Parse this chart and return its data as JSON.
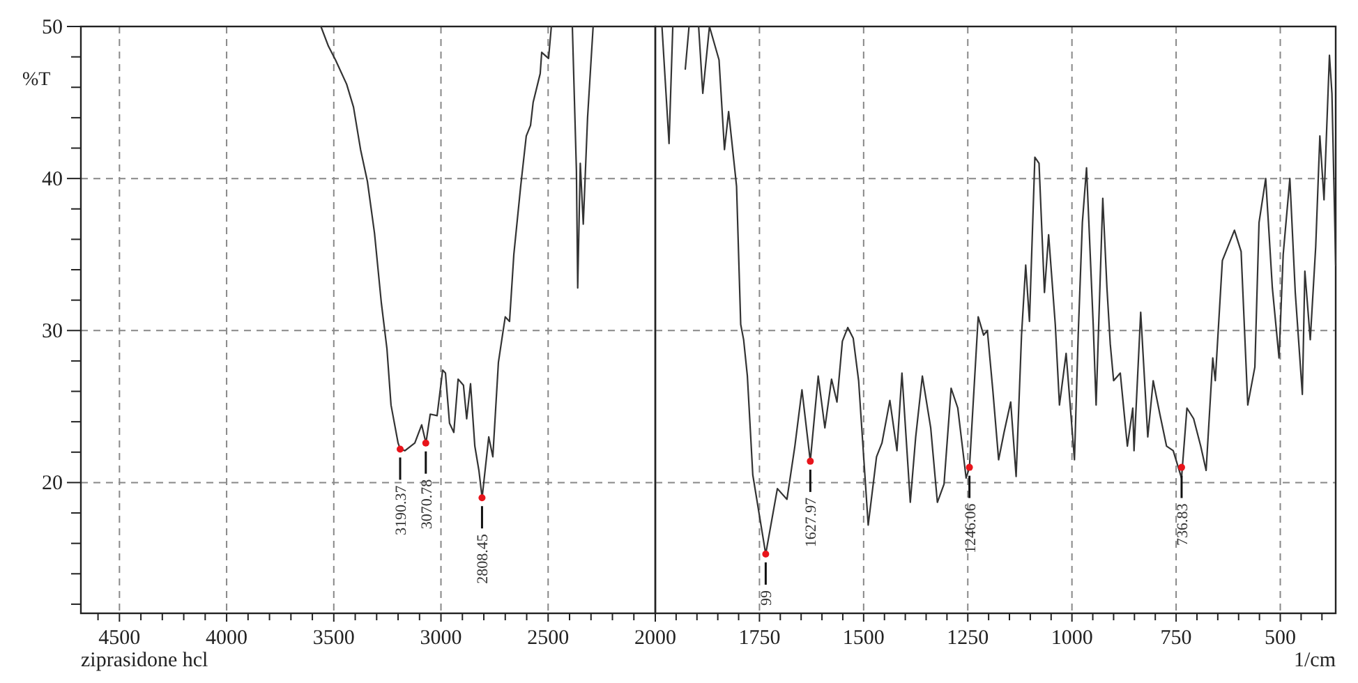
{
  "chart_data": [
    {
      "type": "line",
      "ylabel": "%T",
      "annotations": [
        "ziprasidone hcl",
        {
          "text": "3190.37",
          "x": 3190.37,
          "y": 22.2
        },
        {
          "text": "3070.78",
          "x": 3070.78,
          "y": 22.6
        },
        {
          "text": "2808.45",
          "x": 2808.45,
          "y": 19.0
        }
      ],
      "xlim": [
        4680,
        2000
      ],
      "ylim": [
        11.4,
        50
      ],
      "xticks": [
        {
          "value": 4600,
          "label": null
        },
        4500,
        {
          "value": 4400,
          "label": null
        },
        {
          "value": 4300,
          "label": null
        },
        {
          "value": 4200,
          "label": null
        },
        {
          "value": 4100,
          "label": null
        },
        4000,
        {
          "value": 3900,
          "label": null
        },
        {
          "value": 3800,
          "label": null
        },
        {
          "value": 3700,
          "label": null
        },
        {
          "value": 3600,
          "label": null
        },
        3500,
        {
          "value": 3400,
          "label": null
        },
        {
          "value": 3300,
          "label": null
        },
        {
          "value": 3200,
          "label": null
        },
        {
          "value": 3100,
          "label": null
        },
        3000,
        {
          "value": 2900,
          "label": null
        },
        {
          "value": 2800,
          "label": null
        },
        {
          "value": 2700,
          "label": null
        },
        {
          "value": 2600,
          "label": null
        },
        2500,
        {
          "value": 2400,
          "label": null
        },
        {
          "value": 2300,
          "label": null
        },
        {
          "value": 2200,
          "label": null
        },
        {
          "value": 2100,
          "label": null
        },
        2000
      ],
      "yticks": [
        {
          "value": 12,
          "label": null
        },
        {
          "value": 14,
          "label": null
        },
        {
          "value": 16,
          "label": null
        },
        {
          "value": 18,
          "label": null
        },
        20,
        {
          "value": 22,
          "label": null
        },
        {
          "value": 24,
          "label": null
        },
        {
          "value": 26,
          "label": null
        },
        {
          "value": 28,
          "label": null
        },
        30,
        {
          "value": 32,
          "label": null
        },
        {
          "value": 34,
          "label": null
        },
        {
          "value": 36,
          "label": null
        },
        {
          "value": 38,
          "label": null
        },
        40,
        {
          "value": 42,
          "label": null
        },
        {
          "value": 44,
          "label": null
        },
        {
          "value": 46,
          "label": null
        },
        {
          "value": 48,
          "label": null
        },
        50
      ],
      "grid": true,
      "line_style": "solid",
      "marker": "none",
      "series": [
        {
          "color": "#333333",
          "x": [
            3560,
            3525,
            3492,
            3440,
            3408,
            3375,
            3343,
            3310,
            3278,
            3252,
            3233,
            3200,
            3190,
            3168,
            3122,
            3090,
            3070,
            3050,
            3018,
            2992,
            2979,
            2960,
            2940,
            2920,
            2895,
            2880,
            2862,
            2842,
            2823,
            2808,
            2777,
            2758,
            2732,
            2713,
            2700,
            2680,
            2660,
            2628,
            2602,
            2582,
            2570,
            2537,
            2530,
            2498,
            2485,
            2420,
            2387,
            2368,
            2362,
            2350,
            2336,
            2316,
            2290
          ],
          "values": [
            50,
            48.7,
            47.8,
            46.2,
            44.7,
            41.9,
            39.8,
            36.4,
            31.8,
            28.8,
            25.1,
            22.6,
            22.2,
            22.1,
            22.6,
            23.8,
            22.6,
            24.5,
            24.4,
            27.4,
            27.2,
            23.9,
            23.3,
            26.8,
            26.4,
            24.2,
            26.5,
            22.4,
            20.8,
            19.0,
            23.0,
            21.7,
            27.9,
            29.7,
            30.9,
            30.6,
            35.0,
            39.5,
            42.8,
            43.5,
            45.0,
            46.9,
            48.3,
            47.9,
            50,
            null,
            50,
            40.5,
            32.8,
            41,
            37,
            44,
            50
          ]
        }
      ]
    },
    {
      "type": "line",
      "xlabel": "1/cm",
      "annotations": [
        {
          "text": "99",
          "x": 1735,
          "y": 15.3
        },
        {
          "text": "1627.97",
          "x": 1627.97,
          "y": 21.4
        },
        {
          "text": "1246.06",
          "x": 1246.06,
          "y": 21.0
        },
        {
          "text": "736.83",
          "x": 736.83,
          "y": 21.0
        }
      ],
      "xlim": [
        2000,
        367
      ],
      "ylim": [
        11.4,
        50
      ],
      "tick_labels": "x",
      "xticks": [
        {
          "value": 1950,
          "label": null
        },
        {
          "value": 1900,
          "label": null
        },
        {
          "value": 1850,
          "label": null
        },
        {
          "value": 1800,
          "label": null
        },
        1750,
        {
          "value": 1700,
          "label": null
        },
        {
          "value": 1650,
          "label": null
        },
        {
          "value": 1600,
          "label": null
        },
        {
          "value": 1550,
          "label": null
        },
        1500,
        {
          "value": 1450,
          "label": null
        },
        {
          "value": 1400,
          "label": null
        },
        {
          "value": 1350,
          "label": null
        },
        {
          "value": 1300,
          "label": null
        },
        1250,
        {
          "value": 1200,
          "label": null
        },
        {
          "value": 1150,
          "label": null
        },
        {
          "value": 1100,
          "label": null
        },
        {
          "value": 1050,
          "label": null
        },
        1000,
        {
          "value": 950,
          "label": null
        },
        {
          "value": 900,
          "label": null
        },
        {
          "value": 850,
          "label": null
        },
        {
          "value": 800,
          "label": null
        },
        750,
        {
          "value": 700,
          "label": null
        },
        {
          "value": 650,
          "label": null
        },
        {
          "value": 600,
          "label": null
        },
        {
          "value": 550,
          "label": null
        },
        500,
        {
          "value": 450,
          "label": null
        },
        {
          "value": 400,
          "label": null
        }
      ],
      "yticks": [
        20,
        30,
        40,
        50
      ],
      "grid": true,
      "line_style": "solid",
      "marker": "none",
      "series": [
        {
          "color": "#333333",
          "x": [
            1984,
            1967,
            1958,
            1940,
            1928,
            1919,
            1905,
            1896,
            1886,
            1870,
            1847,
            1834,
            1824,
            1805,
            1795,
            1788,
            1779,
            1766,
            1735,
            1707,
            1684,
            1665,
            1648,
            1628,
            1609,
            1593,
            1577,
            1564,
            1551,
            1538,
            1525,
            1512,
            1489,
            1469,
            1456,
            1437,
            1420,
            1408,
            1388,
            1375,
            1359,
            1339,
            1323,
            1307,
            1290,
            1274,
            1254,
            1246,
            1225,
            1212,
            1203,
            1190,
            1176,
            1163,
            1147,
            1134,
            1121,
            1111,
            1102,
            1089,
            1079,
            1066,
            1056,
            1040,
            1030,
            1014,
            994,
            985,
            975,
            965,
            949,
            942,
            926,
            916,
            908,
            900,
            884,
            867,
            854,
            851,
            835,
            818,
            805,
            789,
            773,
            757,
            737,
            724,
            708,
            691,
            678,
            662,
            656,
            639,
            610,
            594,
            578,
            561,
            551,
            535,
            519,
            503,
            493,
            477,
            464,
            447,
            441,
            428,
            415,
            405,
            395,
            382,
            376,
            367
          ],
          "values": [
            50,
            42.3,
            50,
            null,
            47.2,
            50,
            null,
            50,
            45.6,
            50,
            47.8,
            41.9,
            44.4,
            39.5,
            30.4,
            29.4,
            27.0,
            20.5,
            15.3,
            19.6,
            18.9,
            22.4,
            26.1,
            21.4,
            27.0,
            23.6,
            26.8,
            25.3,
            29.3,
            30.2,
            29.5,
            26.7,
            17.2,
            21.7,
            22.6,
            25.4,
            22.1,
            27.2,
            18.7,
            23.0,
            27.0,
            23.6,
            18.7,
            19.9,
            26.2,
            24.9,
            20.3,
            21.0,
            30.9,
            29.7,
            30.0,
            26.1,
            21.5,
            23.3,
            25.3,
            20.4,
            29.7,
            34.3,
            30.6,
            41.4,
            41.0,
            32.5,
            36.3,
            30.4,
            25.1,
            28.5,
            21.5,
            29.7,
            37.1,
            40.7,
            30.4,
            25.1,
            38.7,
            32.8,
            29.1,
            26.7,
            27.2,
            22.4,
            24.9,
            22.1,
            31.2,
            23.0,
            26.7,
            24.5,
            22.4,
            22.1,
            20.3,
            24.9,
            24.2,
            22.4,
            20.8,
            28.2,
            26.7,
            34.6,
            36.6,
            35.2,
            25.1,
            27.6,
            37.1,
            40.0,
            32.8,
            28.2,
            35.0,
            40.0,
            32.5,
            25.8,
            33.9,
            29.4,
            35.5,
            42.8,
            38.6,
            48.1,
            45.6,
            34.3
          ]
        }
      ]
    }
  ]
}
